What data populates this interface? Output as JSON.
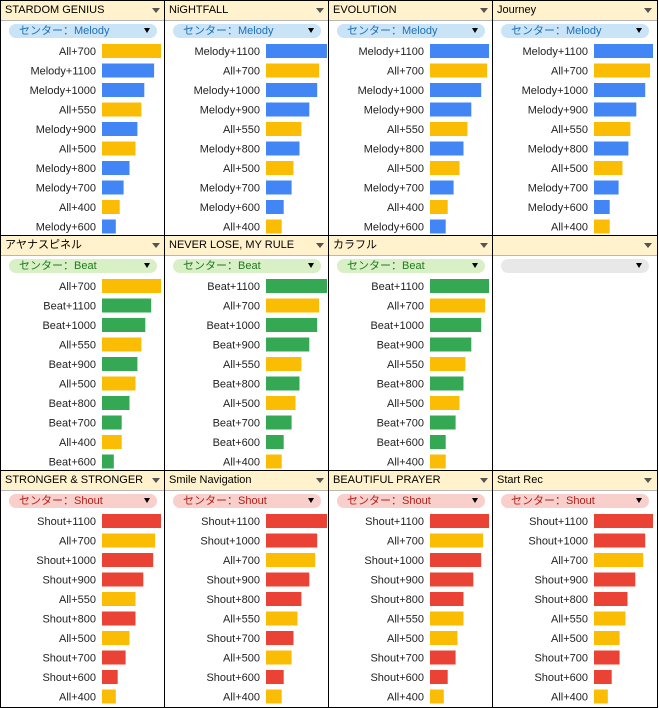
{
  "colors": {
    "melody": "#4285f4",
    "beat": "#34a853",
    "shout": "#ea4335",
    "all": "#fbbc04",
    "chip_melody_bg": "#c9e4f7",
    "chip_melody_text": "#1f6fb5",
    "chip_beat_bg": "#d9f0c6",
    "chip_beat_text": "#1e7a1e",
    "chip_shout_bg": "#f9cfcc",
    "chip_shout_text": "#b0201a",
    "chip_empty_bg": "#e8e8e8"
  },
  "chart_data": [
    {
      "type": "bar",
      "title": "STARDOM GENIUS",
      "center": "センター：Melody",
      "categories": [
        "All+700",
        "Melody+1100",
        "Melody+1000",
        "All+550",
        "Melody+900",
        "All+500",
        "Melody+800",
        "Melody+700",
        "All+400",
        "Melody+600"
      ],
      "values": [
        60,
        53,
        43,
        40,
        36,
        34,
        28,
        22,
        18,
        14
      ]
    },
    {
      "type": "bar",
      "title": "NiGHTFALL",
      "center": "センター：Melody",
      "categories": [
        "Melody+1100",
        "All+700",
        "Melody+1000",
        "Melody+900",
        "All+550",
        "Melody+800",
        "All+500",
        "Melody+700",
        "Melody+600",
        "All+400"
      ],
      "values": [
        62,
        54,
        52,
        44,
        36,
        34,
        28,
        26,
        18,
        16
      ]
    },
    {
      "type": "bar",
      "title": "EVOLUTION",
      "center": "センター：Melody",
      "categories": [
        "Melody+1100",
        "All+700",
        "Melody+1000",
        "Melody+900",
        "All+550",
        "Melody+800",
        "All+500",
        "Melody+700",
        "All+400",
        "Melody+600"
      ],
      "values": [
        60,
        58,
        52,
        42,
        38,
        34,
        30,
        24,
        18,
        16
      ]
    },
    {
      "type": "bar",
      "title": "Journey",
      "center": "センター：Melody",
      "categories": [
        "Melody+1100",
        "All+700",
        "Melody+1000",
        "Melody+900",
        "All+550",
        "Melody+800",
        "All+500",
        "Melody+700",
        "Melody+600",
        "All+400"
      ],
      "values": [
        60,
        57,
        52,
        43,
        37,
        35,
        29,
        25,
        16,
        16
      ]
    },
    {
      "type": "bar",
      "title": "アヤナスピネル",
      "center": "センター：Beat",
      "categories": [
        "All+700",
        "Beat+1100",
        "Beat+1000",
        "All+550",
        "Beat+900",
        "All+500",
        "Beat+800",
        "Beat+700",
        "All+400",
        "Beat+600"
      ],
      "values": [
        60,
        50,
        44,
        40,
        36,
        34,
        28,
        20,
        20,
        12
      ]
    },
    {
      "type": "bar",
      "title": "NEVER LOSE, MY RULE",
      "center": "センター：Beat",
      "categories": [
        "Beat+1100",
        "All+700",
        "Beat+1000",
        "Beat+900",
        "All+550",
        "Beat+800",
        "All+500",
        "Beat+700",
        "Beat+600",
        "All+400"
      ],
      "values": [
        62,
        54,
        52,
        44,
        36,
        34,
        30,
        26,
        18,
        16
      ]
    },
    {
      "type": "bar",
      "title": "カラフル",
      "center": "センター：Beat",
      "categories": [
        "Beat+1100",
        "All+700",
        "Beat+1000",
        "Beat+900",
        "All+550",
        "Beat+800",
        "All+500",
        "Beat+700",
        "Beat+600",
        "All+400"
      ],
      "values": [
        60,
        56,
        52,
        42,
        36,
        34,
        30,
        26,
        16,
        16
      ]
    },
    {
      "type": "empty",
      "title": "",
      "center": "",
      "categories": [],
      "values": []
    },
    {
      "type": "bar",
      "title": "STRONGER & STRONGER",
      "center": "センター：Shout",
      "categories": [
        "Shout+1100",
        "All+700",
        "Shout+1000",
        "Shout+900",
        "All+550",
        "Shout+800",
        "All+500",
        "Shout+700",
        "Shout+600",
        "All+400"
      ],
      "values": [
        60,
        54,
        52,
        42,
        34,
        34,
        28,
        24,
        16,
        14
      ]
    },
    {
      "type": "bar",
      "title": "Smile Navigation",
      "center": "センター：Shout",
      "categories": [
        "Shout+1100",
        "Shout+1000",
        "All+700",
        "Shout+900",
        "Shout+800",
        "All+550",
        "Shout+700",
        "All+500",
        "Shout+600",
        "All+400"
      ],
      "values": [
        62,
        52,
        50,
        44,
        36,
        32,
        28,
        26,
        18,
        16
      ]
    },
    {
      "type": "bar",
      "title": "BEAUTIFUL PRAYER",
      "center": "センター：Shout",
      "categories": [
        "Shout+1100",
        "All+700",
        "Shout+1000",
        "Shout+900",
        "Shout+800",
        "All+550",
        "All+500",
        "Shout+700",
        "Shout+600",
        "All+400"
      ],
      "values": [
        60,
        54,
        52,
        44,
        34,
        34,
        28,
        26,
        18,
        14
      ]
    },
    {
      "type": "bar",
      "title": "Start Rec",
      "center": "センター：Shout",
      "categories": [
        "Shout+1100",
        "Shout+1000",
        "All+700",
        "Shout+900",
        "Shout+800",
        "All+550",
        "All+500",
        "Shout+700",
        "Shout+600",
        "All+400"
      ],
      "values": [
        60,
        52,
        50,
        42,
        34,
        32,
        26,
        26,
        18,
        14
      ]
    }
  ]
}
